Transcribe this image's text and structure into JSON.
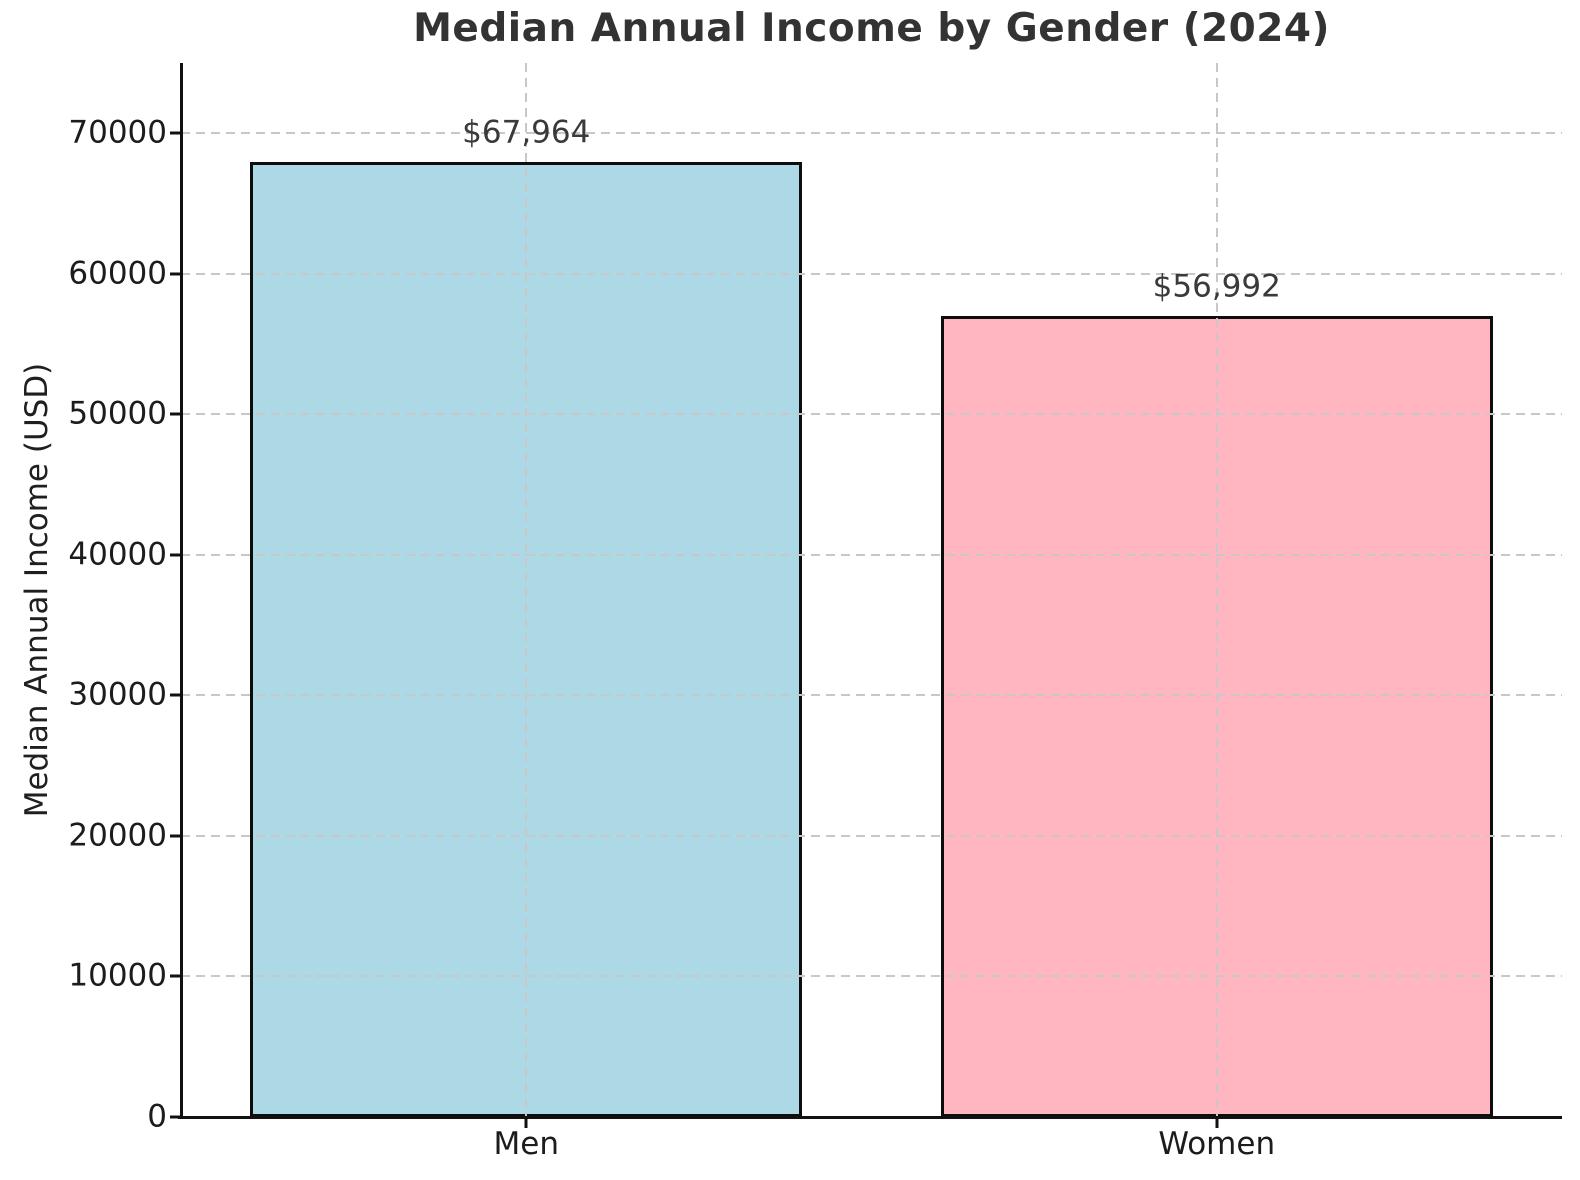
{
  "chart_data": {
    "type": "bar",
    "title": "Median Annual Income by Gender (2024)",
    "xlabel": "",
    "ylabel": "Median Annual Income (USD)",
    "categories": [
      "Men",
      "Women"
    ],
    "values": [
      67964,
      56992
    ],
    "bar_labels": [
      "$67,964",
      "$56,992"
    ],
    "bar_colors": [
      "#ADD8E6",
      "#FFB6C1"
    ],
    "bar_edge_color": "#0d0d0d",
    "ylim": [
      0,
      75000
    ],
    "yticks": [
      {
        "value": 0,
        "label": "0"
      },
      {
        "value": 10000,
        "label": "10000"
      },
      {
        "value": 20000,
        "label": "20000"
      },
      {
        "value": 30000,
        "label": "30000"
      },
      {
        "value": 40000,
        "label": "40000"
      },
      {
        "value": 50000,
        "label": "50000"
      },
      {
        "value": 60000,
        "label": "60000"
      },
      {
        "value": 70000,
        "label": "70000"
      }
    ],
    "grid": {
      "style": "dashed",
      "color": "#c8c8c8",
      "axes": "both",
      "above_bars": true
    },
    "legend_position": "none",
    "label_offset_units": 2050
  }
}
